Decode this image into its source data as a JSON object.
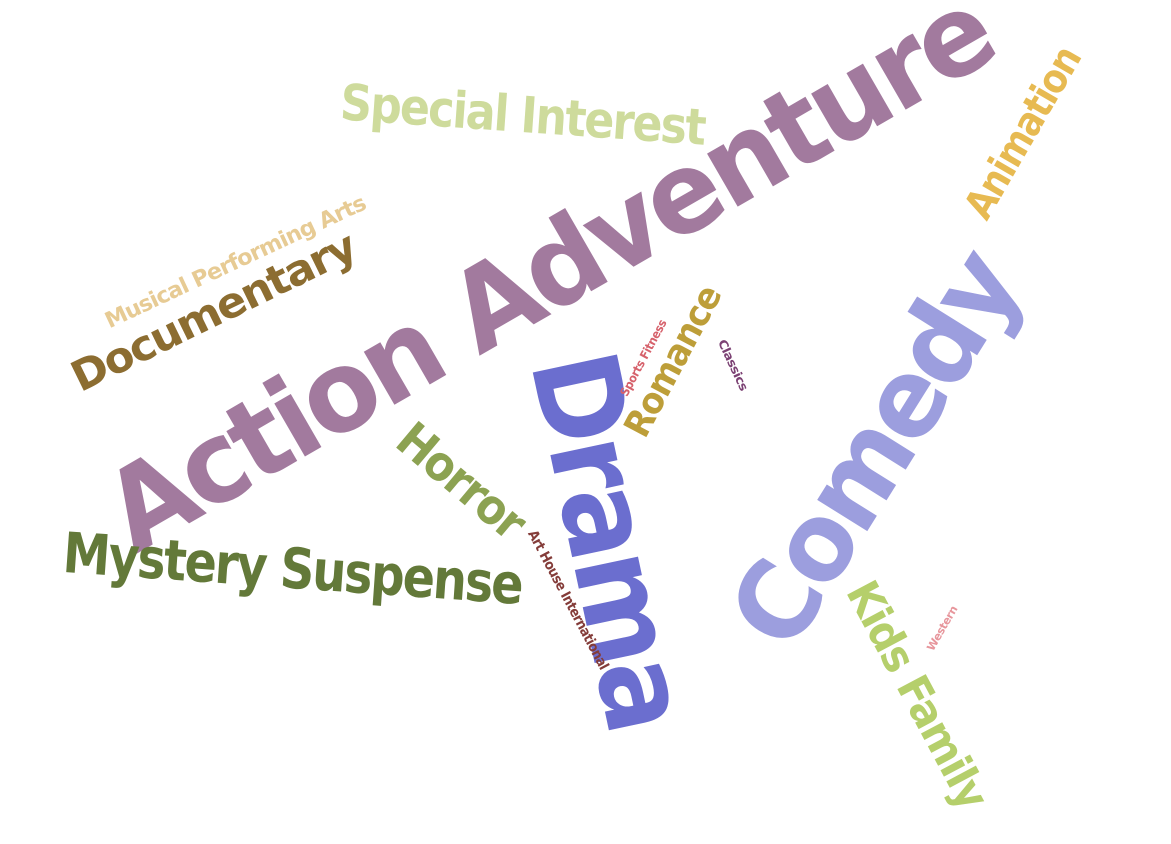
{
  "words": [
    {
      "id": "action-adventure",
      "text": "Action Adventure",
      "color": "#A27A9E"
    },
    {
      "id": "drama",
      "text": "Drama",
      "color": "#6B6ECF"
    },
    {
      "id": "comedy",
      "text": "Comedy",
      "color": "#9C9EDE"
    },
    {
      "id": "mystery-suspense",
      "text": "Mystery Suspense",
      "color": "#637939"
    },
    {
      "id": "special-interest",
      "text": "Special Interest",
      "color": "#CEDB9C"
    },
    {
      "id": "documentary",
      "text": "Documentary",
      "color": "#8C6D31"
    },
    {
      "id": "kids-family",
      "text": "Kids Family",
      "color": "#B5CF6B"
    },
    {
      "id": "animation",
      "text": "Animation",
      "color": "#E7BA52"
    },
    {
      "id": "horror",
      "text": "Horror",
      "color": "#8CA252"
    },
    {
      "id": "romance",
      "text": "Romance",
      "color": "#BD9E39"
    },
    {
      "id": "musical-performing-arts",
      "text": "Musical Performing Arts",
      "color": "#E7CB94"
    },
    {
      "id": "art-house-international",
      "text": "Art House International",
      "color": "#843C39"
    },
    {
      "id": "sports-fitness",
      "text": "Sports Fitness",
      "color": "#D6616B"
    },
    {
      "id": "classics",
      "text": "Classics",
      "color": "#7B4173"
    },
    {
      "id": "western",
      "text": "Western",
      "color": "#E7969C"
    }
  ]
}
